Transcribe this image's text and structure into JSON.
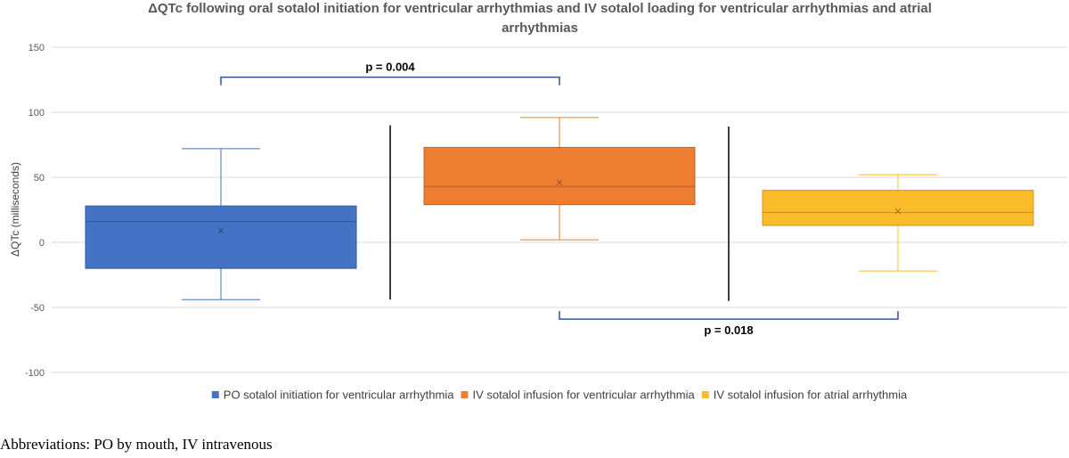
{
  "chart_data": {
    "type": "box",
    "title_lines": [
      "ΔQTc following oral sotalol initiation for ventricular arrhythmias and IV sotalol loading for ventricular arrhythmias and atrial",
      "arrhythmias"
    ],
    "ylabel": "ΔQTc (milliseconds)",
    "ylim": [
      -100,
      150
    ],
    "yticks": [
      150,
      100,
      50,
      0,
      -50,
      -100
    ],
    "grid": true,
    "legend_position": "bottom",
    "series": [
      {
        "name": "PO sotalol initiation for ventricular arrhythmia",
        "color": "#4472C4",
        "min": -44,
        "q1": -20,
        "median": 16,
        "q3": 28,
        "max": 72,
        "mean": 9
      },
      {
        "name": "IV sotalol infusion for ventricular arrhythmia",
        "color": "#ED7D31",
        "min": 2,
        "q1": 29,
        "median": 43,
        "q3": 73,
        "max": 96,
        "mean": 46
      },
      {
        "name": "IV sotalol infusion for atrial arrhythmia",
        "color": "#FBBC2C",
        "min": -22,
        "q1": 13,
        "median": 23,
        "q3": 40,
        "max": 52,
        "mean": 24
      }
    ],
    "comparisons": [
      {
        "between": [
          0,
          1
        ],
        "label": "p = 0.004",
        "position": "above",
        "y": 127
      },
      {
        "between": [
          1,
          2
        ],
        "label": "p = 0.018",
        "position": "below",
        "y": -59
      }
    ],
    "separator_lines": [
      {
        "between": [
          0,
          1
        ],
        "from": -44,
        "to": 90
      },
      {
        "between": [
          1,
          2
        ],
        "from": -45,
        "to": 89
      }
    ]
  },
  "footnote": "Abbreviations: PO by mouth, IV intravenous"
}
